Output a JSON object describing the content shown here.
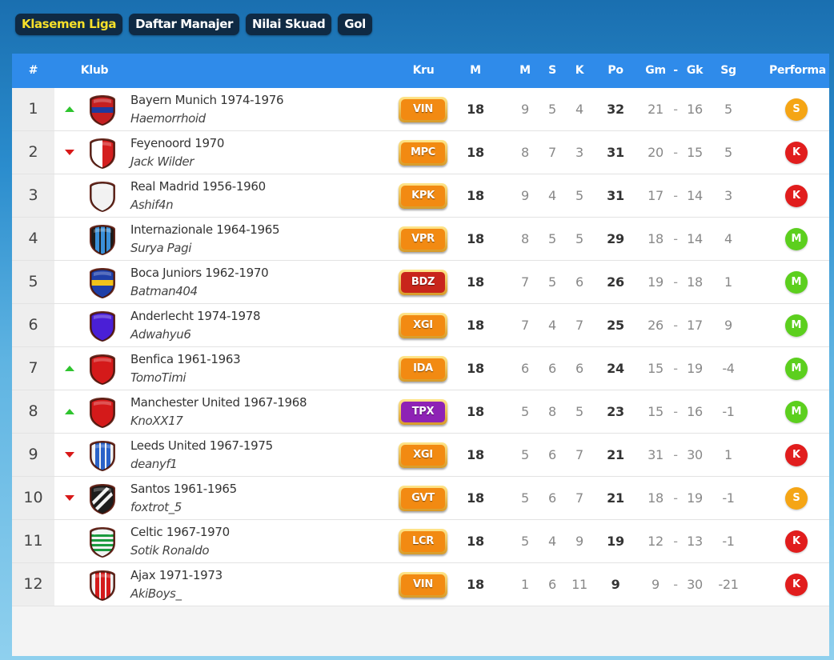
{
  "tabs": [
    {
      "label": "Klasemen Liga",
      "active": true
    },
    {
      "label": "Daftar Manajer",
      "active": false
    },
    {
      "label": "Nilai Skuad",
      "active": false
    },
    {
      "label": "Gol",
      "active": false
    }
  ],
  "header": {
    "rank": "#",
    "club": "Klub",
    "kru": "Kru",
    "played": "M",
    "win": "M",
    "draw": "S",
    "loss": "K",
    "points": "Po",
    "goals_for": "Gm",
    "sep": "-",
    "goals_against": "Gk",
    "goal_diff": "Sg",
    "performance": "Performa"
  },
  "colors": {
    "header_bg": "#2f8bea",
    "trend_up": "#2ec42e",
    "trend_down": "#d81818",
    "perf": {
      "S": "#f5a515",
      "K": "#e11d1d",
      "M": "#5ccf1e"
    },
    "kru": {
      "orange": "#f28a12",
      "red": "#c8251b",
      "purple": "#8e22b5"
    }
  },
  "rows": [
    {
      "rank": "1",
      "trend": "up",
      "crest": {
        "type": "hband",
        "base": "#c41f20",
        "stripe": "#1e3a9e"
      },
      "club": "Bayern Munich 1974-1976",
      "manager": "Haemorrhoid",
      "kru": "VIN",
      "kru_color": "orange",
      "played": "18",
      "w": "9",
      "d": "5",
      "l": "4",
      "pts": "32",
      "gf": "21",
      "ga": "16",
      "gd": "5",
      "perf": "S"
    },
    {
      "rank": "2",
      "trend": "down",
      "crest": {
        "type": "halves",
        "base": "#ffffff",
        "stripe": "#d41f1f"
      },
      "club": "Feyenoord 1970",
      "manager": "Jack Wilder",
      "kru": "MPC",
      "kru_color": "orange",
      "played": "18",
      "w": "8",
      "d": "7",
      "l": "3",
      "pts": "31",
      "gf": "20",
      "ga": "15",
      "gd": "5",
      "perf": "K"
    },
    {
      "rank": "3",
      "trend": "same",
      "crest": {
        "type": "solid",
        "base": "#f2f2f2",
        "stripe": "#f2f2f2"
      },
      "club": "Real Madrid 1956-1960",
      "manager": "Ashif4n",
      "kru": "KPK",
      "kru_color": "orange",
      "played": "18",
      "w": "9",
      "d": "4",
      "l": "5",
      "pts": "31",
      "gf": "17",
      "ga": "14",
      "gd": "3",
      "perf": "K"
    },
    {
      "rank": "4",
      "trend": "same",
      "crest": {
        "type": "vstripes",
        "base": "#1c1c1c",
        "stripe": "#3a8fd8"
      },
      "club": "Internazionale 1964-1965",
      "manager": "Surya Pagi",
      "kru": "VPR",
      "kru_color": "orange",
      "played": "18",
      "w": "8",
      "d": "5",
      "l": "5",
      "pts": "29",
      "gf": "18",
      "ga": "14",
      "gd": "4",
      "perf": "M"
    },
    {
      "rank": "5",
      "trend": "same",
      "crest": {
        "type": "hband",
        "base": "#1f3fa8",
        "stripe": "#f2c21a"
      },
      "club": "Boca Juniors 1962-1970",
      "manager": "Batman404",
      "kru": "BDZ",
      "kru_color": "red",
      "played": "18",
      "w": "7",
      "d": "5",
      "l": "6",
      "pts": "26",
      "gf": "19",
      "ga": "18",
      "gd": "1",
      "perf": "M"
    },
    {
      "rank": "6",
      "trend": "same",
      "crest": {
        "type": "solid",
        "base": "#4a1fd6",
        "stripe": "#4a1fd6"
      },
      "club": "Anderlecht 1974-1978",
      "manager": "Adwahyu6",
      "kru": "XGI",
      "kru_color": "orange",
      "played": "18",
      "w": "7",
      "d": "4",
      "l": "7",
      "pts": "25",
      "gf": "26",
      "ga": "17",
      "gd": "9",
      "perf": "M"
    },
    {
      "rank": "7",
      "trend": "up",
      "crest": {
        "type": "solid",
        "base": "#d41a1a",
        "stripe": "#d41a1a"
      },
      "club": "Benfica 1961-1963",
      "manager": "TomoTimi",
      "kru": "IDA",
      "kru_color": "orange",
      "played": "18",
      "w": "6",
      "d": "6",
      "l": "6",
      "pts": "24",
      "gf": "15",
      "ga": "19",
      "gd": "-4",
      "perf": "M"
    },
    {
      "rank": "8",
      "trend": "up",
      "crest": {
        "type": "solid",
        "base": "#d41a1a",
        "stripe": "#d41a1a"
      },
      "club": "Manchester United 1967-1968",
      "manager": "KnoXX17",
      "kru": "TPX",
      "kru_color": "purple",
      "played": "18",
      "w": "5",
      "d": "8",
      "l": "5",
      "pts": "23",
      "gf": "15",
      "ga": "16",
      "gd": "-1",
      "perf": "M"
    },
    {
      "rank": "9",
      "trend": "down",
      "crest": {
        "type": "vstripes",
        "base": "#f2f2f2",
        "stripe": "#2a62c8"
      },
      "club": "Leeds United 1967-1975",
      "manager": "deanyf1",
      "kru": "XGI",
      "kru_color": "orange",
      "played": "18",
      "w": "5",
      "d": "6",
      "l": "7",
      "pts": "21",
      "gf": "31",
      "ga": "30",
      "gd": "1",
      "perf": "K"
    },
    {
      "rank": "10",
      "trend": "down",
      "crest": {
        "type": "diag",
        "base": "#1c1c1c",
        "stripe": "#f2f2f2"
      },
      "club": "Santos 1961-1965",
      "manager": "foxtrot_5",
      "kru": "GVT",
      "kru_color": "orange",
      "played": "18",
      "w": "5",
      "d": "6",
      "l": "7",
      "pts": "21",
      "gf": "18",
      "ga": "19",
      "gd": "-1",
      "perf": "S"
    },
    {
      "rank": "11",
      "trend": "same",
      "crest": {
        "type": "hoops",
        "base": "#f2f2f2",
        "stripe": "#1b9a3e"
      },
      "club": "Celtic 1967-1970",
      "manager": "Sotik Ronaldo",
      "kru": "LCR",
      "kru_color": "orange",
      "played": "18",
      "w": "5",
      "d": "4",
      "l": "9",
      "pts": "19",
      "gf": "12",
      "ga": "13",
      "gd": "-1",
      "perf": "K"
    },
    {
      "rank": "12",
      "trend": "same",
      "crest": {
        "type": "vstripes",
        "base": "#f2f2f2",
        "stripe": "#d41a1a"
      },
      "club": "Ajax 1971-1973",
      "manager": "AkiBoys_",
      "kru": "VIN",
      "kru_color": "orange",
      "played": "18",
      "w": "1",
      "d": "6",
      "l": "11",
      "pts": "9",
      "gf": "9",
      "ga": "30",
      "gd": "-21",
      "perf": "K"
    }
  ]
}
